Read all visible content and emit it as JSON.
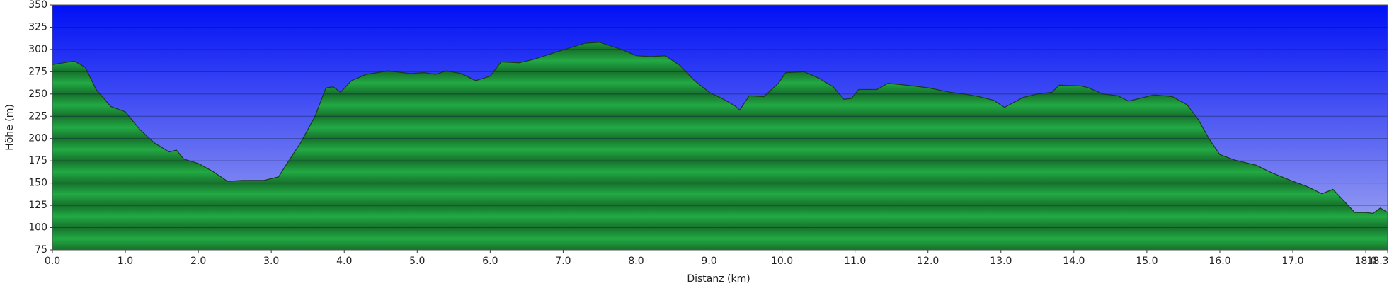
{
  "chart_data": {
    "type": "area",
    "xlabel": "Distanz   (km)",
    "ylabel": "Höhe (m)",
    "x": [
      0,
      0.3,
      0.45,
      0.6,
      0.8,
      1.0,
      1.2,
      1.4,
      1.6,
      1.7,
      1.8,
      2.0,
      2.2,
      2.4,
      2.6,
      2.9,
      3.1,
      3.2,
      3.4,
      3.6,
      3.75,
      3.85,
      3.95,
      4.1,
      4.3,
      4.6,
      4.9,
      5.1,
      5.25,
      5.4,
      5.6,
      5.8,
      6.0,
      6.15,
      6.4,
      6.6,
      6.9,
      7.1,
      7.3,
      7.5,
      7.8,
      8.0,
      8.2,
      8.4,
      8.6,
      8.8,
      9.0,
      9.2,
      9.35,
      9.42,
      9.55,
      9.75,
      9.95,
      10.05,
      10.3,
      10.5,
      10.7,
      10.85,
      10.95,
      11.05,
      11.3,
      11.45,
      11.7,
      12.0,
      12.3,
      12.5,
      12.7,
      12.9,
      13.05,
      13.3,
      13.5,
      13.7,
      13.8,
      14.1,
      14.2,
      14.4,
      14.6,
      14.75,
      14.9,
      15.1,
      15.35,
      15.55,
      15.7,
      15.85,
      16.0,
      16.2,
      16.5,
      16.7,
      17.0,
      17.2,
      17.4,
      17.55,
      17.7,
      17.85,
      18.0,
      18.1,
      18.2,
      18.3
    ],
    "values": [
      283,
      287,
      280,
      255,
      236,
      230,
      210,
      195,
      185,
      187,
      177,
      172,
      163,
      152,
      153,
      153,
      157,
      170,
      195,
      225,
      257,
      258,
      252,
      265,
      272,
      276,
      273,
      274,
      272,
      276,
      273,
      265,
      270,
      286,
      285,
      289,
      297,
      302,
      307,
      308,
      300,
      293,
      292,
      293,
      282,
      265,
      252,
      244,
      237,
      232,
      248,
      247,
      262,
      274,
      275,
      268,
      258,
      244,
      245,
      255,
      255,
      262,
      260,
      257,
      252,
      250,
      247,
      243,
      235,
      246,
      250,
      252,
      260,
      259,
      257,
      250,
      248,
      242,
      245,
      249,
      247,
      238,
      222,
      200,
      182,
      176,
      170,
      162,
      152,
      146,
      138,
      143,
      130,
      117,
      117,
      116,
      122,
      117
    ],
    "color": "#22aa44",
    "xlim": [
      0,
      18.3
    ],
    "xticks": [
      {
        "value": 0,
        "label": "0.0"
      },
      {
        "value": 1,
        "label": "1.0"
      },
      {
        "value": 2,
        "label": "2.0"
      },
      {
        "value": 3,
        "label": "3.0"
      },
      {
        "value": 4,
        "label": "4.0"
      },
      {
        "value": 5,
        "label": "5.0"
      },
      {
        "value": 6,
        "label": "6.0"
      },
      {
        "value": 7,
        "label": "7.0"
      },
      {
        "value": 8,
        "label": "8.0"
      },
      {
        "value": 9,
        "label": "9.0"
      },
      {
        "value": 10,
        "label": "10.0"
      },
      {
        "value": 11,
        "label": "11.0"
      },
      {
        "value": 12,
        "label": "12.0"
      },
      {
        "value": 13,
        "label": "13.0"
      },
      {
        "value": 14,
        "label": "14.0"
      },
      {
        "value": 15,
        "label": "15.0"
      },
      {
        "value": 16,
        "label": "16.0"
      },
      {
        "value": 17,
        "label": "17.0"
      },
      {
        "value": 18,
        "label": "18.0"
      },
      18.3
    ],
    "ylim": [
      75,
      350
    ],
    "yticks": [
      75,
      100,
      125,
      150,
      175,
      200,
      225,
      250,
      275,
      300,
      325,
      350
    ],
    "grid": true
  }
}
